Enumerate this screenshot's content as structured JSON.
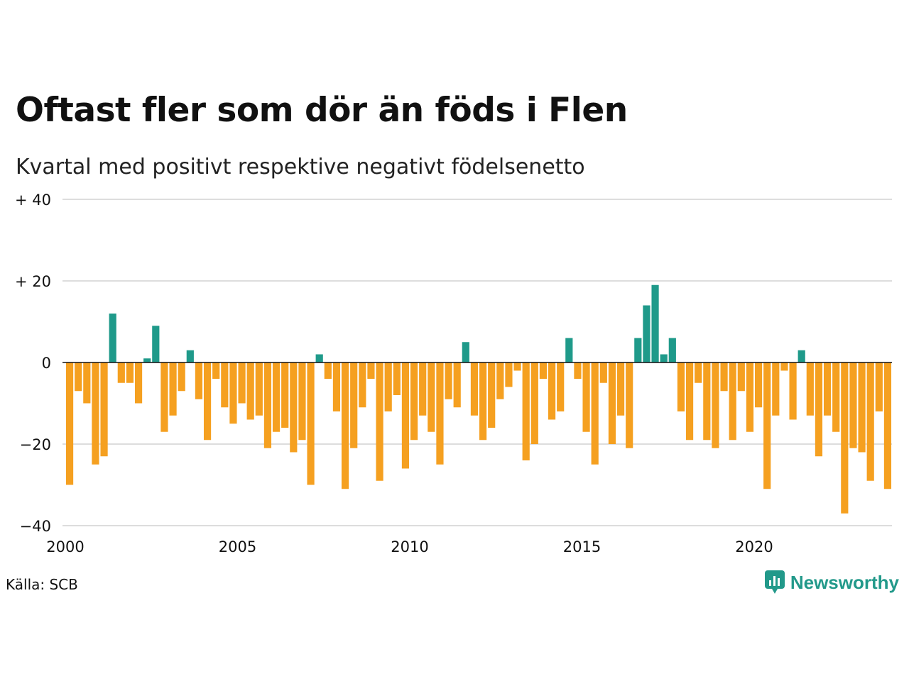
{
  "title": "Oftast fler som dör än föds i Flen",
  "subtitle": "Kvartal med positivt respektive negativt födelsenetto",
  "source": "Källa: SCB",
  "brand": "Newsworthy",
  "colors": {
    "positive": "#1f9a8a",
    "negative": "#f5a020",
    "grid": "#dddddd",
    "zero": "#111111"
  },
  "chart_data": {
    "type": "bar",
    "ylim": [
      -40,
      40
    ],
    "y_ticks": [
      {
        "value": 40,
        "label": "+ 40"
      },
      {
        "value": 20,
        "label": "+ 20"
      },
      {
        "value": 0,
        "label": "0"
      },
      {
        "value": -20,
        "label": "−20"
      },
      {
        "value": -40,
        "label": "−40"
      }
    ],
    "x_ticks": [
      "2000",
      "2005",
      "2010",
      "2015",
      "2020"
    ],
    "start": "2000 Q1",
    "values": [
      -30,
      -7,
      -10,
      -25,
      -23,
      12,
      -5,
      -5,
      -10,
      1,
      9,
      -17,
      -13,
      -7,
      3,
      -9,
      -19,
      -4,
      -11,
      -15,
      -10,
      -14,
      -13,
      -21,
      -17,
      -16,
      -22,
      -19,
      -30,
      2,
      -4,
      -12,
      -31,
      -21,
      -11,
      -4,
      -29,
      -12,
      -8,
      -26,
      -19,
      -13,
      -17,
      -25,
      -9,
      -11,
      5,
      -13,
      -19,
      -16,
      -9,
      -6,
      -2,
      -24,
      -20,
      -4,
      -14,
      -12,
      6,
      -4,
      -17,
      -25,
      -5,
      -20,
      -13,
      -21,
      6,
      14,
      19,
      2,
      6,
      -12,
      -19,
      -5,
      -19,
      -21,
      -7,
      -19,
      -7,
      -17,
      -11,
      -31,
      -13,
      -2,
      -14,
      3,
      -13,
      -23,
      -13,
      -17,
      -37,
      -21,
      -22,
      -29,
      -12,
      -31
    ]
  }
}
